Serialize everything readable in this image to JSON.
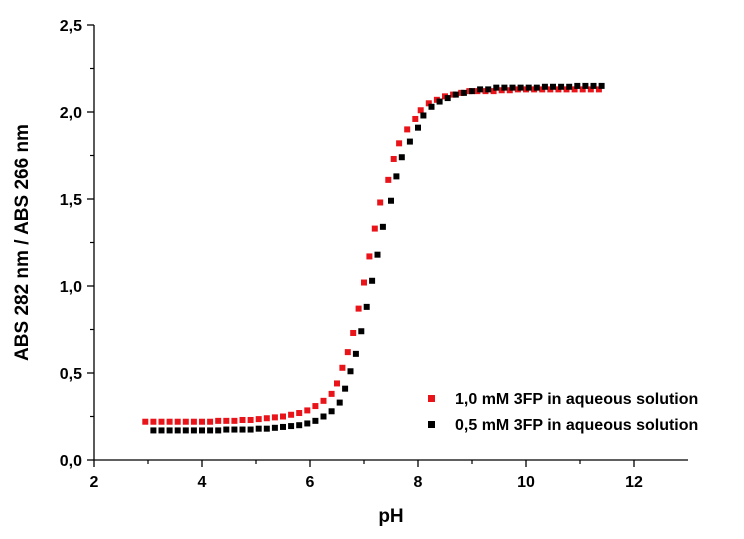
{
  "chart_data": {
    "type": "scatter",
    "title": "",
    "xlabel": "pH",
    "ylabel": "ABS 282 nm / ABS 266 nm",
    "xlim": [
      2,
      13
    ],
    "ylim": [
      0,
      2.5
    ],
    "x_ticks": [
      2,
      4,
      6,
      8,
      10,
      12
    ],
    "y_ticks": [
      0,
      0.5,
      1.0,
      1.5,
      2.0,
      2.5
    ],
    "x_tick_labels": [
      "2",
      "4",
      "6",
      "8",
      "10",
      "12"
    ],
    "y_tick_labels": [
      "0,0",
      "0,5",
      "1,0",
      "1,5",
      "2,0",
      "2,5"
    ],
    "grid": false,
    "legend_position": "bottom-right",
    "series": [
      {
        "name": "1,0 mM 3FP in aqueous solution",
        "color": "#e8141a",
        "x": [
          2.95,
          3.1,
          3.25,
          3.4,
          3.55,
          3.7,
          3.85,
          4.0,
          4.15,
          4.3,
          4.45,
          4.6,
          4.75,
          4.9,
          5.05,
          5.2,
          5.35,
          5.5,
          5.65,
          5.8,
          5.95,
          6.1,
          6.25,
          6.4,
          6.5,
          6.6,
          6.7,
          6.8,
          6.9,
          7.0,
          7.1,
          7.2,
          7.3,
          7.45,
          7.55,
          7.65,
          7.8,
          7.95,
          8.05,
          8.2,
          8.35,
          8.5,
          8.65,
          8.8,
          8.95,
          9.1,
          9.25,
          9.4,
          9.55,
          9.7,
          9.85,
          10.0,
          10.15,
          10.3,
          10.45,
          10.6,
          10.75,
          10.9,
          11.05,
          11.2,
          11.35
        ],
        "y": [
          0.22,
          0.22,
          0.22,
          0.22,
          0.22,
          0.22,
          0.22,
          0.22,
          0.22,
          0.225,
          0.225,
          0.225,
          0.23,
          0.23,
          0.235,
          0.24,
          0.245,
          0.25,
          0.26,
          0.27,
          0.285,
          0.31,
          0.34,
          0.38,
          0.44,
          0.53,
          0.62,
          0.73,
          0.87,
          1.02,
          1.17,
          1.33,
          1.48,
          1.61,
          1.73,
          1.82,
          1.9,
          1.96,
          2.01,
          2.05,
          2.07,
          2.09,
          2.1,
          2.11,
          2.12,
          2.12,
          2.12,
          2.12,
          2.125,
          2.125,
          2.13,
          2.13,
          2.13,
          2.13,
          2.13,
          2.13,
          2.13,
          2.13,
          2.13,
          2.13,
          2.13
        ]
      },
      {
        "name": "0,5 mM 3FP in aqueous solution",
        "color": "#000000",
        "x": [
          3.1,
          3.25,
          3.4,
          3.55,
          3.7,
          3.85,
          4.0,
          4.15,
          4.3,
          4.45,
          4.6,
          4.75,
          4.9,
          5.05,
          5.2,
          5.35,
          5.5,
          5.65,
          5.8,
          5.95,
          6.1,
          6.25,
          6.4,
          6.55,
          6.65,
          6.75,
          6.85,
          6.95,
          7.05,
          7.15,
          7.25,
          7.35,
          7.5,
          7.6,
          7.7,
          7.85,
          8.0,
          8.1,
          8.25,
          8.4,
          8.55,
          8.7,
          8.85,
          9.0,
          9.15,
          9.3,
          9.45,
          9.6,
          9.75,
          9.9,
          10.05,
          10.2,
          10.35,
          10.5,
          10.65,
          10.8,
          10.95,
          11.1,
          11.25,
          11.4
        ],
        "y": [
          0.17,
          0.17,
          0.17,
          0.17,
          0.17,
          0.17,
          0.17,
          0.17,
          0.17,
          0.175,
          0.175,
          0.175,
          0.175,
          0.18,
          0.18,
          0.185,
          0.19,
          0.195,
          0.2,
          0.21,
          0.225,
          0.25,
          0.28,
          0.33,
          0.41,
          0.51,
          0.61,
          0.74,
          0.88,
          1.03,
          1.18,
          1.34,
          1.49,
          1.63,
          1.74,
          1.83,
          1.91,
          1.98,
          2.03,
          2.06,
          2.08,
          2.1,
          2.11,
          2.12,
          2.13,
          2.13,
          2.14,
          2.14,
          2.14,
          2.14,
          2.14,
          2.14,
          2.145,
          2.145,
          2.145,
          2.145,
          2.15,
          2.15,
          2.15,
          2.15
        ]
      }
    ]
  }
}
